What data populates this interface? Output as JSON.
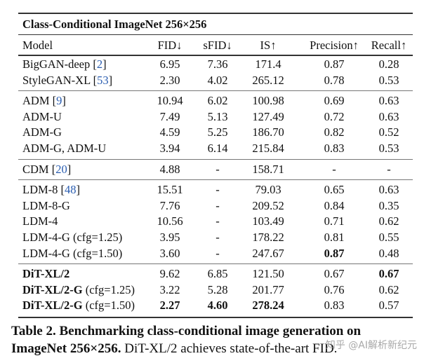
{
  "table": {
    "title": "Class-Conditional ImageNet 256×256",
    "headers": [
      "Model",
      "FID↓",
      "sFID↓",
      "IS↑",
      "Precision↑",
      "Recall↑"
    ],
    "groups": [
      [
        {
          "name": "BigGAN-deep",
          "cite": "2",
          "suffix": "",
          "values": [
            "6.95",
            "7.36",
            "171.4",
            "0.87",
            "0.28"
          ],
          "bold_name": false,
          "bold": []
        },
        {
          "name": "StyleGAN-XL",
          "cite": "53",
          "suffix": "",
          "values": [
            "2.30",
            "4.02",
            "265.12",
            "0.78",
            "0.53"
          ],
          "bold_name": false,
          "bold": []
        }
      ],
      [
        {
          "name": "ADM",
          "cite": "9",
          "suffix": "",
          "values": [
            "10.94",
            "6.02",
            "100.98",
            "0.69",
            "0.63"
          ],
          "bold_name": false,
          "bold": []
        },
        {
          "name": "ADM-U",
          "cite": "",
          "suffix": "",
          "values": [
            "7.49",
            "5.13",
            "127.49",
            "0.72",
            "0.63"
          ],
          "bold_name": false,
          "bold": []
        },
        {
          "name": "ADM-G",
          "cite": "",
          "suffix": "",
          "values": [
            "4.59",
            "5.25",
            "186.70",
            "0.82",
            "0.52"
          ],
          "bold_name": false,
          "bold": []
        },
        {
          "name": "ADM-G, ADM-U",
          "cite": "",
          "suffix": "",
          "values": [
            "3.94",
            "6.14",
            "215.84",
            "0.83",
            "0.53"
          ],
          "bold_name": false,
          "bold": []
        }
      ],
      [
        {
          "name": "CDM",
          "cite": "20",
          "suffix": "",
          "values": [
            "4.88",
            "-",
            "158.71",
            "-",
            "-"
          ],
          "bold_name": false,
          "bold": []
        }
      ],
      [
        {
          "name": "LDM-8",
          "cite": "48",
          "suffix": "",
          "values": [
            "15.51",
            "-",
            "79.03",
            "0.65",
            "0.63"
          ],
          "bold_name": false,
          "bold": []
        },
        {
          "name": "LDM-8-G",
          "cite": "",
          "suffix": "",
          "values": [
            "7.76",
            "-",
            "209.52",
            "0.84",
            "0.35"
          ],
          "bold_name": false,
          "bold": []
        },
        {
          "name": "LDM-4",
          "cite": "",
          "suffix": "",
          "values": [
            "10.56",
            "-",
            "103.49",
            "0.71",
            "0.62"
          ],
          "bold_name": false,
          "bold": []
        },
        {
          "name": "LDM-4-G (cfg=1.25)",
          "cite": "",
          "suffix": "",
          "values": [
            "3.95",
            "-",
            "178.22",
            "0.81",
            "0.55"
          ],
          "bold_name": false,
          "bold": []
        },
        {
          "name": "LDM-4-G (cfg=1.50)",
          "cite": "",
          "suffix": "",
          "values": [
            "3.60",
            "-",
            "247.67",
            "0.87",
            "0.48"
          ],
          "bold_name": false,
          "bold": [
            3
          ]
        }
      ],
      [
        {
          "name": "DiT-XL/2",
          "cite": "",
          "suffix": "",
          "values": [
            "9.62",
            "6.85",
            "121.50",
            "0.67",
            "0.67"
          ],
          "bold_name": true,
          "bold": [
            4
          ]
        },
        {
          "name": "DiT-XL/2-G",
          "cite": "",
          "suffix": " (cfg=1.25)",
          "values": [
            "3.22",
            "5.28",
            "201.77",
            "0.76",
            "0.62"
          ],
          "bold_name": true,
          "bold": []
        },
        {
          "name": "DiT-XL/2-G",
          "cite": "",
          "suffix": " (cfg=1.50)",
          "values": [
            "2.27",
            "4.60",
            "278.24",
            "0.83",
            "0.57"
          ],
          "bold_name": true,
          "bold": [
            0,
            1,
            2
          ]
        }
      ]
    ]
  },
  "caption": {
    "label": "Table 2.",
    "bold_text": "Benchmarking class-conditional image generation on ImageNet 256×256.",
    "text": "DiT-XL/2 achieves state-of-the-art FID."
  },
  "watermark": "知乎 @AI解析新纪元"
}
